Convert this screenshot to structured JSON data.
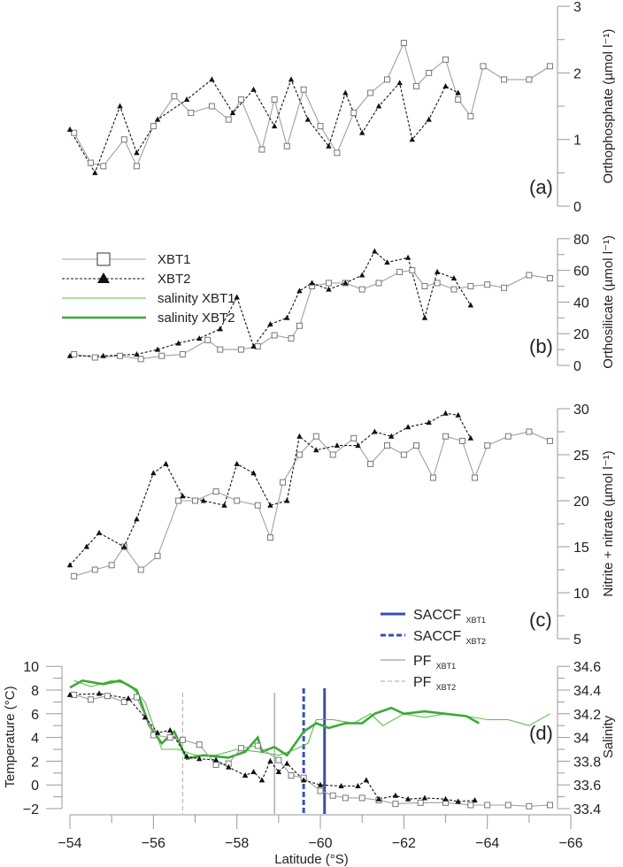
{
  "chart_data": [
    {
      "id": "a",
      "type": "line",
      "panel_label": "(a)",
      "ylabel": "Orthophosphate (µmol l⁻¹)",
      "ylim": [
        0,
        3
      ],
      "yticks": [
        "0",
        "1",
        "2",
        "3"
      ],
      "axis_side": "right",
      "series": [
        {
          "name": "XBT1",
          "lat": [
            -54.1,
            -54.5,
            -54.8,
            -55.3,
            -55.6,
            -56.0,
            -56.5,
            -56.9,
            -57.4,
            -57.8,
            -58.1,
            -58.6,
            -58.9,
            -59.2,
            -59.6,
            -60.0,
            -60.4,
            -60.8,
            -61.2,
            -61.6,
            -62.0,
            -62.3,
            -62.6,
            -63.0,
            -63.3,
            -63.6,
            -63.9,
            -64.4,
            -65.0,
            -65.5
          ],
          "values": [
            1.1,
            0.65,
            0.6,
            1.0,
            0.6,
            1.2,
            1.65,
            1.4,
            1.5,
            1.3,
            1.6,
            0.85,
            1.6,
            0.9,
            1.75,
            1.2,
            0.8,
            1.4,
            1.7,
            1.9,
            2.45,
            1.8,
            2.0,
            2.2,
            1.6,
            1.35,
            2.1,
            1.9,
            1.9,
            2.1
          ]
        },
        {
          "name": "XBT2",
          "lat": [
            -54.0,
            -54.6,
            -55.2,
            -55.6,
            -56.1,
            -56.8,
            -57.4,
            -57.9,
            -58.4,
            -58.9,
            -59.3,
            -59.7,
            -60.2,
            -60.6,
            -61.0,
            -61.4,
            -61.9,
            -62.2,
            -62.6,
            -63.0,
            -63.3
          ],
          "values": [
            1.15,
            0.5,
            1.5,
            0.8,
            1.3,
            1.6,
            1.9,
            1.4,
            1.75,
            1.2,
            1.9,
            1.3,
            0.9,
            1.7,
            1.1,
            1.5,
            1.85,
            1.0,
            1.3,
            1.8,
            1.7
          ]
        }
      ]
    },
    {
      "id": "b",
      "type": "line",
      "panel_label": "(b)",
      "ylabel": "Orthosilicate (µmol l⁻¹)",
      "ylim": [
        0,
        80
      ],
      "yticks": [
        "0",
        "20",
        "40",
        "60",
        "80"
      ],
      "axis_side": "right",
      "series": [
        {
          "name": "XBT1",
          "lat": [
            -54.1,
            -54.6,
            -55.2,
            -55.7,
            -56.2,
            -56.7,
            -57.3,
            -57.6,
            -58.1,
            -58.5,
            -58.9,
            -59.3,
            -59.5,
            -59.8,
            -60.2,
            -60.6,
            -61.0,
            -61.4,
            -61.9,
            -62.2,
            -62.5,
            -62.8,
            -63.2,
            -63.6,
            -64.0,
            -64.4,
            -65.0,
            -65.5
          ],
          "values": [
            7,
            5,
            6,
            4,
            6,
            7,
            16,
            10,
            10,
            12,
            19,
            17,
            25,
            50,
            52,
            52,
            48,
            52,
            59,
            60,
            50,
            52,
            48,
            50,
            51,
            49,
            57,
            55
          ]
        },
        {
          "name": "XBT2",
          "lat": [
            -54.0,
            -54.8,
            -55.6,
            -56.1,
            -56.6,
            -57.1,
            -57.6,
            -58.0,
            -58.4,
            -58.8,
            -59.2,
            -59.5,
            -59.8,
            -60.2,
            -60.6,
            -61.0,
            -61.3,
            -61.6,
            -62.1,
            -62.5,
            -62.8,
            -63.2,
            -63.6
          ],
          "values": [
            6,
            6,
            7,
            10,
            14,
            17,
            23,
            43,
            12,
            26,
            30,
            47,
            52,
            48,
            52,
            57,
            72,
            65,
            68,
            30,
            59,
            55,
            38
          ]
        }
      ]
    },
    {
      "id": "c",
      "type": "line",
      "panel_label": "(c)",
      "ylabel": "Nitrite + nitrate (µmol l⁻¹)",
      "ylim": [
        5,
        30
      ],
      "yticks": [
        "5",
        "10",
        "15",
        "20",
        "25",
        "30"
      ],
      "axis_side": "right",
      "series": [
        {
          "name": "XBT1",
          "lat": [
            -54.1,
            -54.6,
            -55.0,
            -55.3,
            -55.7,
            -56.1,
            -56.6,
            -57.0,
            -57.5,
            -58.0,
            -58.5,
            -58.8,
            -59.1,
            -59.5,
            -59.9,
            -60.3,
            -60.8,
            -61.2,
            -61.6,
            -62.0,
            -62.3,
            -62.7,
            -63.0,
            -63.4,
            -63.7,
            -64.0,
            -64.5,
            -65.0,
            -65.5
          ],
          "values": [
            11.8,
            12.5,
            13,
            15,
            12.5,
            14,
            20,
            20,
            21,
            20,
            19.5,
            16,
            22,
            25,
            27,
            25,
            26.8,
            24,
            26,
            25,
            26,
            22.5,
            27,
            26.5,
            22.5,
            26,
            27,
            27.5,
            26.5
          ]
        },
        {
          "name": "XBT2",
          "lat": [
            -54.0,
            -54.4,
            -54.7,
            -55.3,
            -55.6,
            -56.0,
            -56.3,
            -56.7,
            -57.2,
            -57.7,
            -58.0,
            -58.4,
            -58.8,
            -59.2,
            -59.5,
            -59.9,
            -60.4,
            -60.9,
            -61.3,
            -61.7,
            -62.1,
            -62.6,
            -63.0,
            -63.3,
            -63.6
          ],
          "values": [
            13,
            15,
            16.5,
            15,
            18,
            23,
            24,
            20.5,
            20,
            19.5,
            24,
            23,
            19.5,
            20,
            27,
            25.5,
            26,
            26,
            27.5,
            27,
            28,
            28.5,
            29.5,
            29.3,
            26.8
          ]
        }
      ]
    },
    {
      "id": "d",
      "type": "line",
      "panel_label": "(d)",
      "xlabel": "Latitude (°S)",
      "xlim": [
        -54,
        -66
      ],
      "xticks": [
        "−54",
        "−56",
        "−58",
        "−60",
        "−62",
        "−64",
        "−66"
      ],
      "ylabel": "Temperature (°C)",
      "ylim": [
        -2,
        10
      ],
      "yticks": [
        "−2",
        "0",
        "2",
        "4",
        "6",
        "8",
        "10"
      ],
      "y2label": "Salinity",
      "y2lim": [
        33.4,
        34.6
      ],
      "y2ticks": [
        "33.4",
        "33.6",
        "33.8",
        "34",
        "34.2",
        "34.4",
        "34.6"
      ],
      "series": [
        {
          "name": "XBT1",
          "axis": "left",
          "lat": [
            -54.1,
            -54.5,
            -54.9,
            -55.3,
            -55.6,
            -56.0,
            -56.4,
            -56.7,
            -57.1,
            -57.5,
            -57.8,
            -58.1,
            -58.5,
            -59.0,
            -59.3,
            -59.6,
            -60.0,
            -60.3,
            -60.6,
            -61.0,
            -61.4,
            -61.8,
            -62.4,
            -63.0,
            -63.6,
            -64.0,
            -64.5,
            -65.0,
            -65.5
          ],
          "values": [
            7.6,
            7.2,
            7.5,
            7.0,
            7.4,
            4.2,
            4.0,
            3.8,
            3.4,
            1.7,
            1.8,
            3.1,
            3.3,
            2.1,
            0.8,
            0.6,
            -0.5,
            -0.9,
            -1.1,
            -1.1,
            -1.3,
            -1.6,
            -1.5,
            -1.5,
            -1.7,
            -1.7,
            -1.7,
            -1.8,
            -1.7
          ]
        },
        {
          "name": "XBT2",
          "axis": "left",
          "lat": [
            -54.0,
            -54.7,
            -55.4,
            -55.8,
            -56.1,
            -56.4,
            -56.8,
            -57.1,
            -57.5,
            -57.8,
            -58.2,
            -58.4,
            -58.6,
            -58.8,
            -59.0,
            -59.2,
            -59.6,
            -60.0,
            -60.5,
            -60.9,
            -61.1,
            -61.4,
            -61.8,
            -62.1,
            -62.5,
            -63.0,
            -63.3,
            -63.7
          ],
          "values": [
            7.6,
            7.7,
            7.3,
            5.7,
            4.4,
            4.6,
            2.4,
            2.2,
            2.1,
            1.5,
            0.8,
            1.1,
            0.4,
            2.0,
            1.1,
            1.8,
            0.4,
            0.0,
            -0.1,
            -0.1,
            0.4,
            -1.2,
            -0.9,
            -1.2,
            -1.1,
            -1.2,
            -1.4,
            -1.3
          ]
        },
        {
          "name": "salinity XBT1",
          "axis": "right",
          "lat": [
            -54.1,
            -54.5,
            -55.0,
            -55.4,
            -55.8,
            -56.2,
            -56.6,
            -57.0,
            -57.5,
            -58.0,
            -58.5,
            -59.0,
            -59.4,
            -59.7,
            -59.9,
            -60.3,
            -60.8,
            -61.2,
            -61.5,
            -62.0,
            -62.5,
            -63.0,
            -63.5,
            -64.0,
            -64.5,
            -65.0,
            -65.5
          ],
          "values": [
            34.48,
            34.43,
            34.48,
            34.45,
            34.3,
            33.9,
            33.9,
            33.85,
            33.85,
            33.9,
            33.88,
            33.85,
            33.9,
            33.95,
            34.15,
            34.15,
            34.12,
            34.2,
            34.1,
            34.2,
            34.17,
            34.2,
            34.18,
            34.15,
            34.15,
            34.1,
            34.2
          ]
        },
        {
          "name": "salinity XBT2",
          "axis": "right",
          "lat": [
            -54.0,
            -54.3,
            -54.8,
            -55.2,
            -55.6,
            -55.9,
            -56.2,
            -56.5,
            -56.8,
            -57.2,
            -57.8,
            -58.2,
            -58.5,
            -58.6,
            -58.9,
            -59.2,
            -59.6,
            -59.9,
            -60.2,
            -60.6,
            -61.0,
            -61.3,
            -61.7,
            -62.0,
            -62.5,
            -63.0,
            -63.5,
            -63.8
          ],
          "values": [
            34.42,
            34.48,
            34.45,
            34.48,
            34.4,
            34.1,
            33.95,
            34.05,
            33.82,
            33.85,
            33.83,
            33.88,
            34.0,
            33.88,
            33.92,
            33.85,
            34.05,
            34.12,
            34.08,
            34.12,
            34.12,
            34.2,
            34.25,
            34.2,
            34.22,
            34.2,
            34.18,
            34.12
          ]
        }
      ],
      "fronts": [
        {
          "name": "SACCF",
          "sub": "XBT1",
          "lat": -60.1,
          "color": "#3a4fb0",
          "style": "solid-thick"
        },
        {
          "name": "SACCF",
          "sub": "XBT2",
          "lat": -59.6,
          "color": "#3a4fb0",
          "style": "dashed-thick"
        },
        {
          "name": "PF",
          "sub": "XBT1",
          "lat": -58.9,
          "color": "#777777",
          "style": "solid-thin"
        },
        {
          "name": "PF",
          "sub": "XBT2",
          "lat": -56.7,
          "color": "#999999",
          "style": "dashed-thin"
        }
      ]
    }
  ],
  "legend": {
    "items": [
      {
        "label": "XBT1",
        "color": "#999999"
      },
      {
        "label": "XBT2",
        "color": "#111111"
      },
      {
        "label": "salinity XBT1",
        "color": "#5cbf4a"
      },
      {
        "label": "salinity XBT2",
        "color": "#3aaa35"
      }
    ]
  }
}
